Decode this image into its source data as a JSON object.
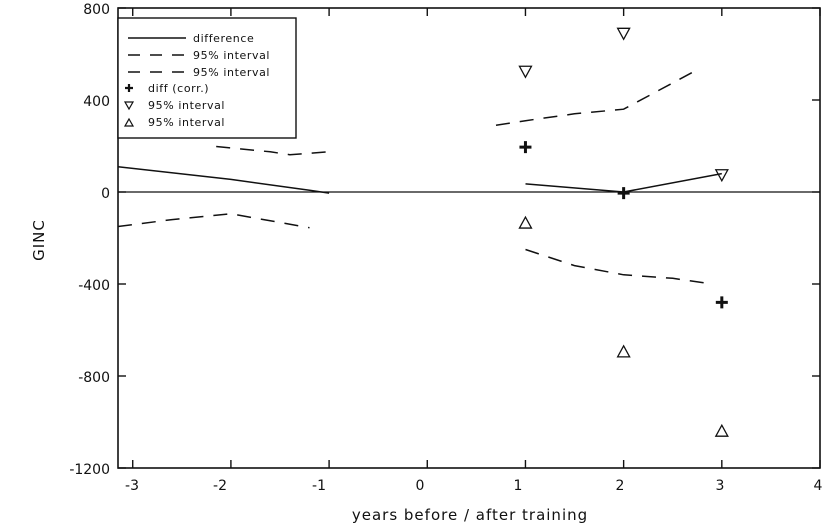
{
  "chart_data": {
    "type": "line",
    "xlabel": "years before / after training",
    "ylabel": "GINC",
    "xlim": [
      -3.15,
      4
    ],
    "ylim": [
      -1200,
      800
    ],
    "xticks": [
      -3,
      -2,
      -1,
      0,
      1,
      2,
      3,
      4
    ],
    "xtick_labels": [
      "-3",
      "-2",
      "-1",
      "0",
      "1",
      "2",
      "3",
      "4"
    ],
    "yticks": [
      -1200,
      -800,
      -400,
      0,
      400,
      800
    ],
    "ytick_labels": [
      "-1200",
      "-800",
      "-400",
      "0",
      "400",
      "800"
    ],
    "grid": false,
    "legend_position": "top-left",
    "zero_line": true,
    "series": [
      {
        "name": "difference",
        "style": "solid",
        "segments": [
          [
            [
              -3.15,
              110
            ],
            [
              -2,
              55
            ],
            [
              -1.2,
              8
            ],
            [
              -1,
              -5
            ]
          ],
          [
            [
              1,
              35
            ],
            [
              2,
              0
            ],
            [
              3,
              80
            ]
          ]
        ]
      },
      {
        "name": "95% interval",
        "style": "dashed",
        "segments": [
          [
            [
              -2.15,
              198
            ],
            [
              -1.6,
              175
            ],
            [
              -1.4,
              162
            ],
            [
              -1,
              175
            ]
          ],
          [
            [
              0.7,
              290
            ],
            [
              1,
              310
            ],
            [
              1.5,
              340
            ],
            [
              2,
              360
            ],
            [
              2.7,
              520
            ]
          ]
        ]
      },
      {
        "name": "95% interval",
        "style": "dashed",
        "segments": [
          [
            [
              -3.15,
              -150
            ],
            [
              -2.6,
              -120
            ],
            [
              -2,
              -95
            ],
            [
              -1.2,
              -155
            ]
          ],
          [
            [
              1,
              -250
            ],
            [
              1.5,
              -320
            ],
            [
              2,
              -360
            ],
            [
              2.5,
              -375
            ],
            [
              2.9,
              -400
            ]
          ]
        ]
      },
      {
        "name": "diff (corr.)",
        "marker": "plus",
        "points": [
          [
            1,
            195
          ],
          [
            2,
            -5
          ],
          [
            3,
            -480
          ]
        ]
      },
      {
        "name": "95% interval",
        "marker": "triangle-down",
        "points": [
          [
            1,
            525
          ],
          [
            2,
            690
          ],
          [
            3,
            75
          ]
        ]
      },
      {
        "name": "95% interval",
        "marker": "triangle-up",
        "points": [
          [
            1,
            -135
          ],
          [
            2,
            -695
          ],
          [
            3,
            -1040
          ]
        ]
      }
    ]
  }
}
